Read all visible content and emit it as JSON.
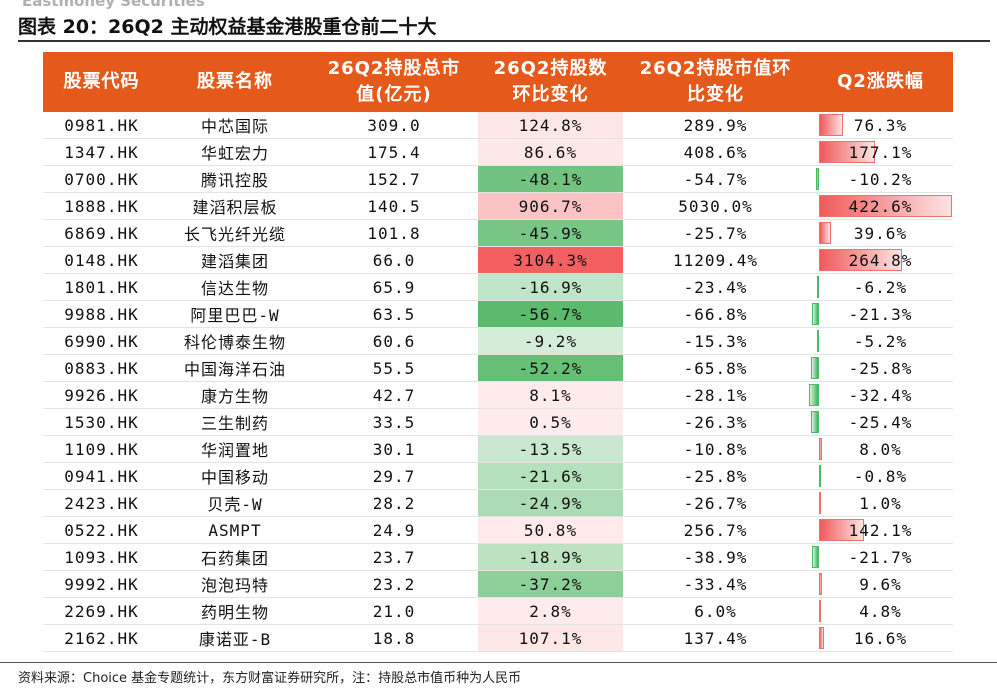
{
  "header": {
    "brand": "Eastmoney Securities",
    "title": "图表 20：26Q2 主动权益基金港股重仓前二十大"
  },
  "table": {
    "columns": [
      "股票代码",
      "股票名称",
      "26Q2持股总市值(亿元)",
      "26Q2持股数环比变化",
      "26Q2持股市值环比变化",
      "Q2涨跌幅"
    ],
    "rows": [
      [
        "0981.HK",
        "中芯国际",
        "309.0",
        "124.8%",
        "289.9%",
        "76.3%"
      ],
      [
        "1347.HK",
        "华虹宏力",
        "175.4",
        "86.6%",
        "408.6%",
        "177.1%"
      ],
      [
        "0700.HK",
        "腾讯控股",
        "152.7",
        "-48.1%",
        "-54.7%",
        "-10.2%"
      ],
      [
        "1888.HK",
        "建滔积层板",
        "140.5",
        "906.7%",
        "5030.0%",
        "422.6%"
      ],
      [
        "6869.HK",
        "长飞光纤光缆",
        "101.8",
        "-45.9%",
        "-25.7%",
        "39.6%"
      ],
      [
        "0148.HK",
        "建滔集团",
        "66.0",
        "3104.3%",
        "11209.4%",
        "264.8%"
      ],
      [
        "1801.HK",
        "信达生物",
        "65.9",
        "-16.9%",
        "-23.4%",
        "-6.2%"
      ],
      [
        "9988.HK",
        "阿里巴巴-W",
        "63.5",
        "-56.7%",
        "-66.8%",
        "-21.3%"
      ],
      [
        "6990.HK",
        "科伦博泰生物",
        "60.6",
        "-9.2%",
        "-15.3%",
        "-5.2%"
      ],
      [
        "0883.HK",
        "中国海洋石油",
        "55.5",
        "-52.2%",
        "-65.8%",
        "-25.8%"
      ],
      [
        "9926.HK",
        "康方生物",
        "42.7",
        "8.1%",
        "-28.1%",
        "-32.4%"
      ],
      [
        "1530.HK",
        "三生制药",
        "33.5",
        "0.5%",
        "-26.3%",
        "-25.4%"
      ],
      [
        "1109.HK",
        "华润置地",
        "30.1",
        "-13.5%",
        "-10.8%",
        "8.0%"
      ],
      [
        "0941.HK",
        "中国移动",
        "29.7",
        "-21.6%",
        "-25.8%",
        "-0.8%"
      ],
      [
        "2423.HK",
        "贝壳-W",
        "28.2",
        "-24.9%",
        "-26.7%",
        "1.0%"
      ],
      [
        "0522.HK",
        "ASMPT",
        "24.9",
        "50.8%",
        "256.7%",
        "142.1%"
      ],
      [
        "1093.HK",
        "石药集团",
        "23.7",
        "-18.9%",
        "-38.9%",
        "-21.7%"
      ],
      [
        "9992.HK",
        "泡泡玛特",
        "23.2",
        "-37.2%",
        "-33.4%",
        "9.6%"
      ],
      [
        "2269.HK",
        "药明生物",
        "21.0",
        "2.8%",
        "6.0%",
        "4.8%"
      ],
      [
        "2162.HK",
        "康诺亚-B",
        "18.8",
        "107.1%",
        "137.4%",
        "16.6%"
      ]
    ]
  },
  "footer": {
    "note": "资料来源：Choice 基金专题统计，东方财富证券研究所，注：持股总市值币种为人民币"
  }
}
